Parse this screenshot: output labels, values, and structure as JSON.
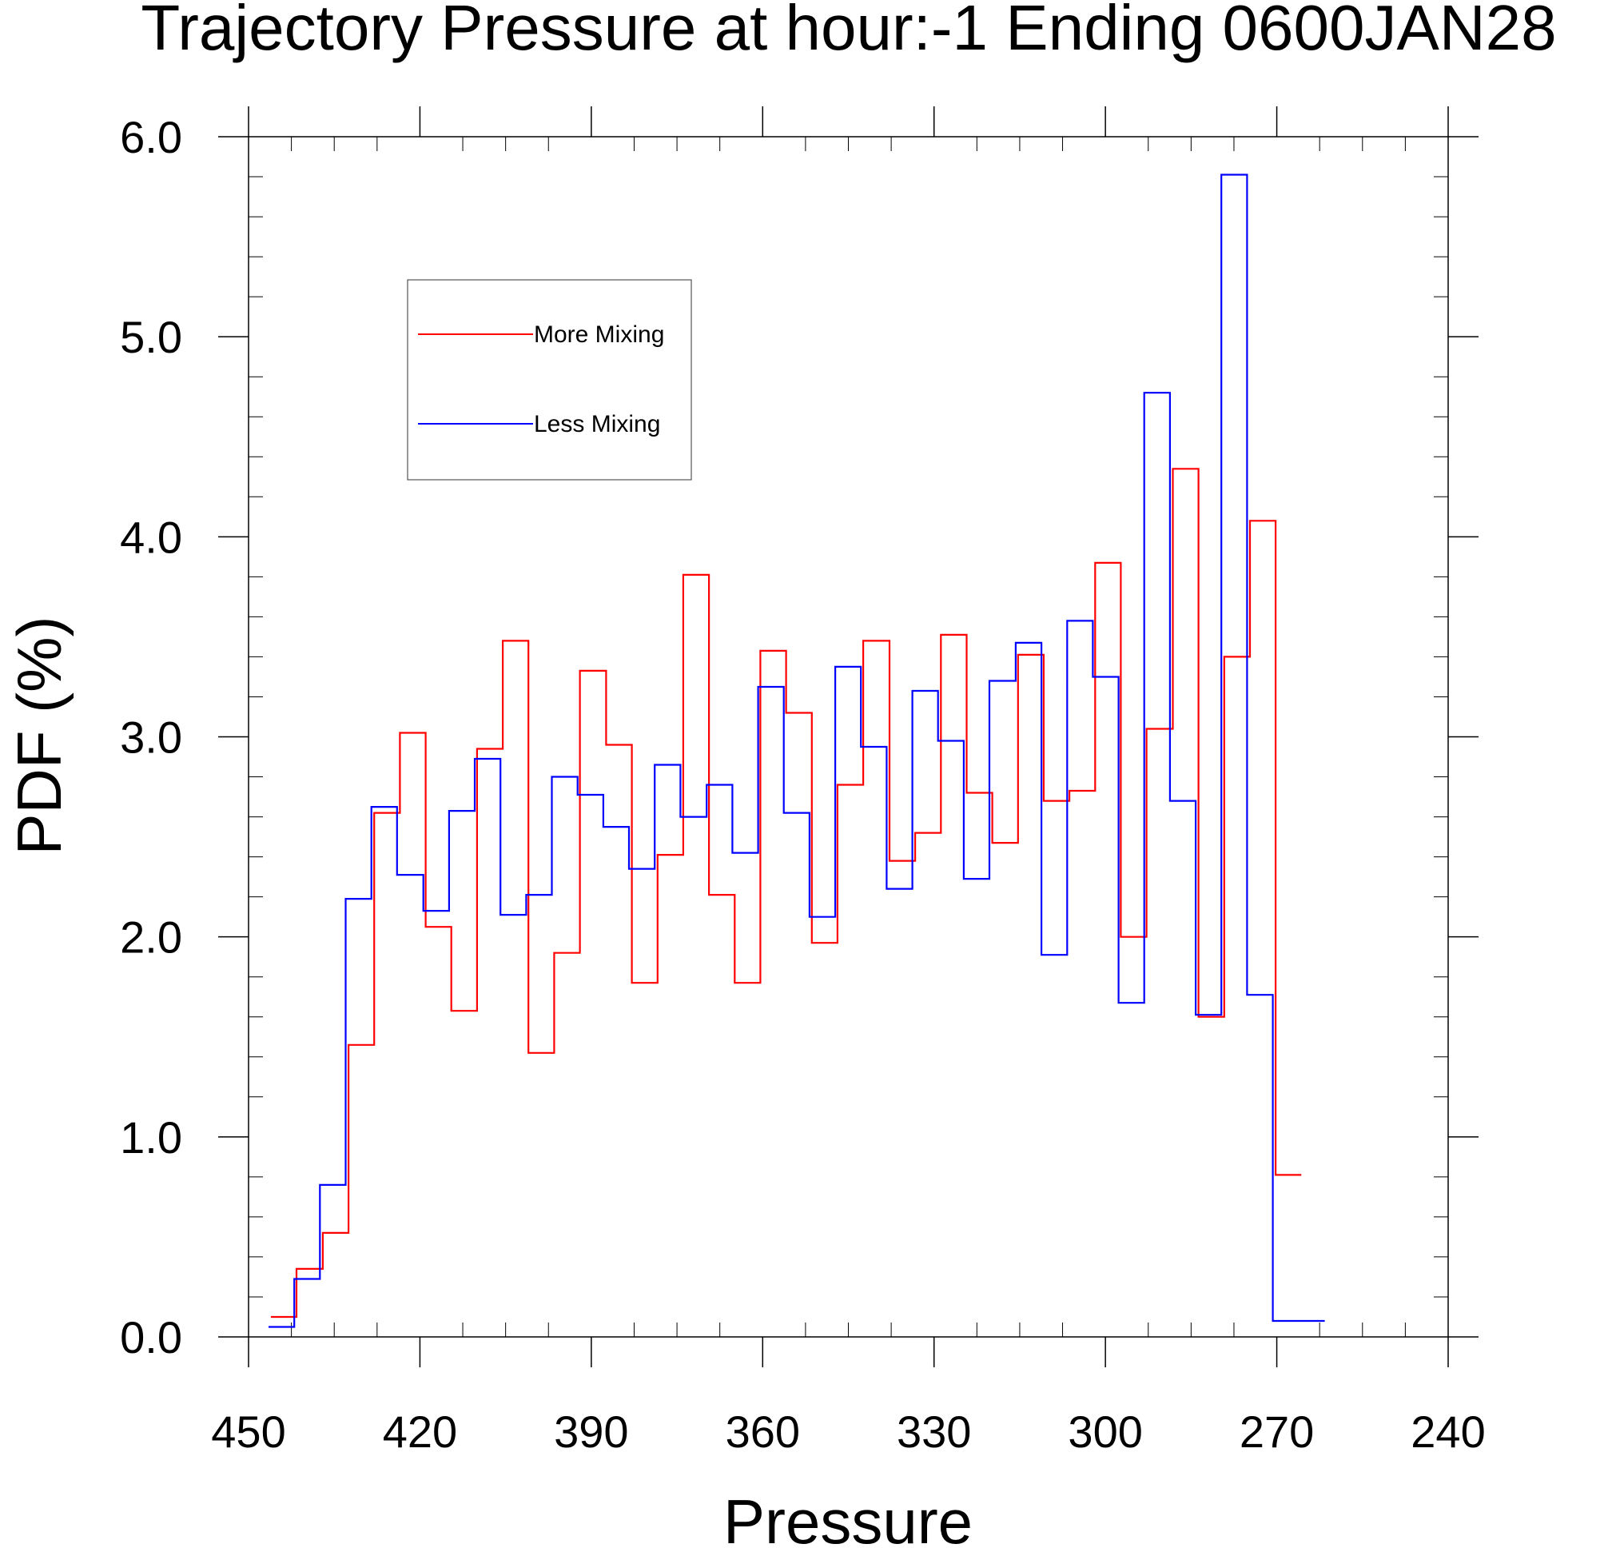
{
  "chart_data": {
    "type": "line",
    "step": true,
    "title": "Trajectory Pressure at hour:-1  Ending 0600JAN28",
    "xlabel": "Pressure",
    "ylabel": "PDF (%)",
    "xlim": [
      450,
      240
    ],
    "ylim": [
      0,
      6
    ],
    "x_reversed": true,
    "xticks": [
      450,
      420,
      390,
      360,
      330,
      300,
      270,
      240
    ],
    "xtick_labels": [
      "450",
      "420",
      "390",
      "360",
      "330",
      "300",
      "270",
      "240"
    ],
    "yticks": [
      0,
      1,
      2,
      3,
      4,
      5,
      6
    ],
    "ytick_labels": [
      "0.0",
      "1.0",
      "2.0",
      "3.0",
      "4.0",
      "5.0",
      "6.0"
    ],
    "grid": false,
    "legend_position": "upper-left",
    "series": [
      {
        "name": "More Mixing",
        "color": "#ff0000",
        "x": [
          446.1,
          441.6,
          437.0,
          432.5,
          428.0,
          423.5,
          419.0,
          414.5,
          410.0,
          405.5,
          401.0,
          396.5,
          392.0,
          387.4,
          382.9,
          378.4,
          373.9,
          369.4,
          364.9,
          360.4,
          355.9,
          351.4,
          346.9,
          342.4,
          337.8,
          333.3,
          328.8,
          324.3,
          319.8,
          315.3,
          310.8,
          306.3,
          301.8,
          297.3,
          292.8,
          288.2,
          283.7,
          279.2,
          274.7,
          270.2,
          265.7
        ],
        "values": [
          0.1,
          0.34,
          0.52,
          1.46,
          2.62,
          3.02,
          2.05,
          1.63,
          2.94,
          3.48,
          1.42,
          1.92,
          3.33,
          2.96,
          1.77,
          2.41,
          3.81,
          2.21,
          1.77,
          3.43,
          3.12,
          1.97,
          2.76,
          3.48,
          2.38,
          2.52,
          3.51,
          2.72,
          2.47,
          3.41,
          2.68,
          2.73,
          3.87,
          2.0,
          3.04,
          4.34,
          1.6,
          3.4,
          4.08,
          0.81,
          0.81
        ]
      },
      {
        "name": "Less Mixing",
        "color": "#0000ff",
        "x": [
          446.5,
          442.0,
          437.5,
          433.0,
          428.5,
          424.0,
          419.4,
          414.9,
          410.4,
          405.9,
          401.4,
          396.9,
          392.4,
          387.9,
          383.4,
          378.9,
          374.4,
          369.8,
          365.3,
          360.8,
          356.3,
          351.8,
          347.3,
          342.8,
          338.3,
          333.8,
          329.3,
          324.8,
          320.3,
          315.7,
          311.2,
          306.7,
          302.2,
          297.7,
          293.2,
          288.7,
          284.2,
          279.7,
          275.2,
          270.7,
          266.2,
          261.6
        ],
        "values": [
          0.05,
          0.29,
          0.76,
          2.19,
          2.65,
          2.31,
          2.13,
          2.63,
          2.89,
          2.11,
          2.21,
          2.8,
          2.71,
          2.55,
          2.34,
          2.86,
          2.6,
          2.76,
          2.42,
          3.25,
          2.62,
          2.1,
          3.35,
          2.95,
          2.24,
          3.23,
          2.98,
          2.29,
          3.28,
          3.47,
          1.91,
          3.58,
          3.3,
          1.67,
          4.72,
          2.68,
          1.61,
          5.81,
          1.71,
          0.08,
          0.08,
          0.08
        ]
      }
    ]
  }
}
